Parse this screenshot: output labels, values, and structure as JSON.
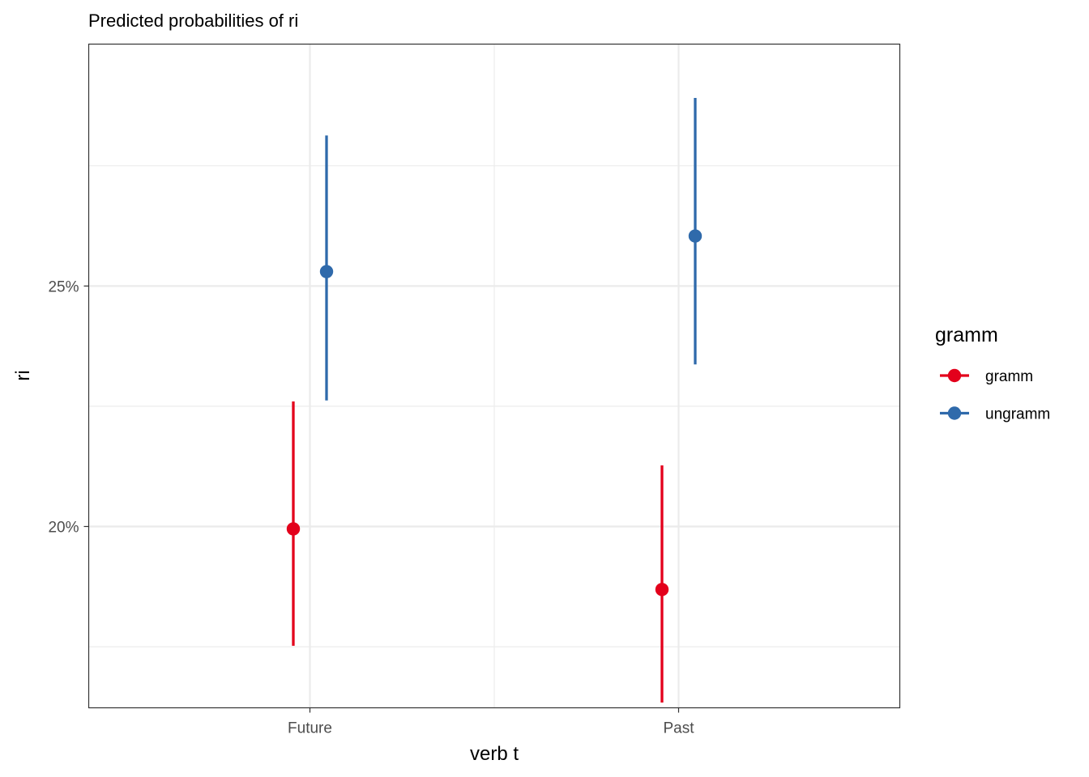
{
  "chart_data": {
    "type": "scatter",
    "title": "Predicted probabilities of ri",
    "xlabel": "verb t",
    "ylabel": "ri",
    "categories": [
      "Future",
      "Past"
    ],
    "y_ticks": [
      {
        "value": 0.2,
        "label": "20%"
      },
      {
        "value": 0.25,
        "label": "25%"
      }
    ],
    "ylim": [
      0.1623,
      0.3003
    ],
    "grid": true,
    "legend": {
      "title": "gramm",
      "position": "right"
    },
    "series": [
      {
        "name": "gramm",
        "color": "#e3001b",
        "points": [
          {
            "x": "Future",
            "y": 0.1995,
            "ymin": 0.1752,
            "ymax": 0.226
          },
          {
            "x": "Past",
            "y": 0.1869,
            "ymin": 0.1634,
            "ymax": 0.2127
          }
        ]
      },
      {
        "name": "ungramm",
        "color": "#2f6aab",
        "points": [
          {
            "x": "Future",
            "y": 0.253,
            "ymin": 0.2262,
            "ymax": 0.2813
          },
          {
            "x": "Past",
            "y": 0.2604,
            "ymin": 0.2337,
            "ymax": 0.2891
          }
        ]
      }
    ]
  }
}
